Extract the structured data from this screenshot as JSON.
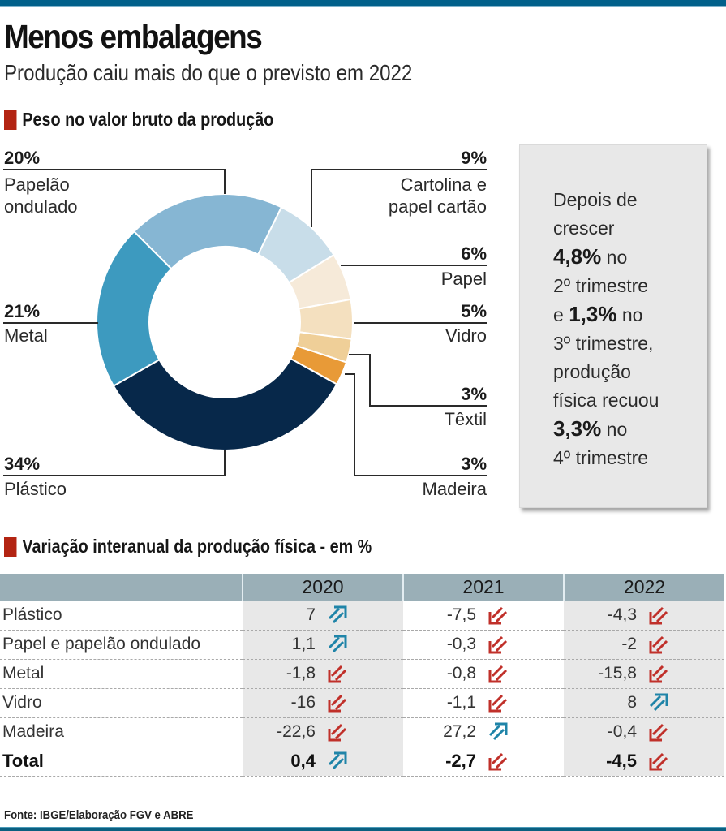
{
  "header": {
    "title": "Menos embalagens",
    "subtitle": "Produção caiu mais do que o previsto em 2022"
  },
  "donut_section": {
    "heading": "Peso no valor bruto da produção"
  },
  "callout": {
    "lines": [
      {
        "text": "Depois de"
      },
      {
        "text": "crescer"
      },
      {
        "bold": "4,8%",
        "text": " no"
      },
      {
        "text": "2º trimestre"
      },
      {
        "pre": "e ",
        "bold": "1,3%",
        "text": " no"
      },
      {
        "text": "3º trimestre,"
      },
      {
        "text": "produção"
      },
      {
        "text": "física recuou"
      },
      {
        "bold": "3,3%",
        "text": " no"
      },
      {
        "text": "4º trimestre"
      }
    ]
  },
  "table_section": {
    "heading": "Variação interanual da produção física - em %"
  },
  "colors": {
    "up_arrow": "#1f84a8",
    "down_arrow": "#c0302a",
    "header_bg": "#9aafb7",
    "accent_marker": "#b32412",
    "top_bar": "#01608a"
  },
  "source": "Fonte: IBGE/Elaboração FGV e ABRE",
  "chart_data": [
    {
      "type": "pie",
      "title": "Peso no valor bruto da produção",
      "variant": "donut",
      "unit": "%",
      "slices": [
        {
          "label": "Papelão ondulado",
          "value": 20,
          "pct_label": "20%",
          "color": "#86b6d3"
        },
        {
          "label": "Cartolina e papel cartão",
          "value": 9,
          "pct_label": "9%",
          "color": "#c8dde9"
        },
        {
          "label": "Papel",
          "value": 6,
          "pct_label": "6%",
          "color": "#f6ead9"
        },
        {
          "label": "Vidro",
          "value": 5,
          "pct_label": "5%",
          "color": "#f4e0bf"
        },
        {
          "label": "Têxtil",
          "value": 3,
          "pct_label": "3%",
          "color": "#efcf98"
        },
        {
          "label": "Madeira",
          "value": 3,
          "pct_label": "3%",
          "color": "#e89a37"
        },
        {
          "label": "Plástico",
          "value": 34,
          "pct_label": "34%",
          "color": "#07284a"
        },
        {
          "label": "Metal",
          "value": 21,
          "pct_label": "21%",
          "color": "#3d9abf"
        }
      ]
    },
    {
      "type": "table",
      "title": "Variação interanual da produção física - em %",
      "columns": [
        "2020",
        "2021",
        "2022"
      ],
      "rows": [
        {
          "label": "Plástico",
          "values": [
            "7",
            "-7,5",
            "-4,3"
          ],
          "trend": [
            "up",
            "down",
            "down"
          ]
        },
        {
          "label": "Papel e papelão ondulado",
          "values": [
            "1,1",
            "-0,3",
            "-2"
          ],
          "trend": [
            "up",
            "down",
            "down"
          ]
        },
        {
          "label": "Metal",
          "values": [
            "-1,8",
            "-0,8",
            "-15,8"
          ],
          "trend": [
            "down",
            "down",
            "down"
          ]
        },
        {
          "label": "Vidro",
          "values": [
            "-16",
            "-1,1",
            "8"
          ],
          "trend": [
            "down",
            "down",
            "up"
          ]
        },
        {
          "label": "Madeira",
          "values": [
            "-22,6",
            "27,2",
            "-0,4"
          ],
          "trend": [
            "down",
            "up",
            "down"
          ]
        },
        {
          "label": "Total",
          "values": [
            "0,4",
            "-2,7",
            "-4,5"
          ],
          "trend": [
            "up",
            "down",
            "down"
          ],
          "bold": true
        }
      ]
    }
  ]
}
